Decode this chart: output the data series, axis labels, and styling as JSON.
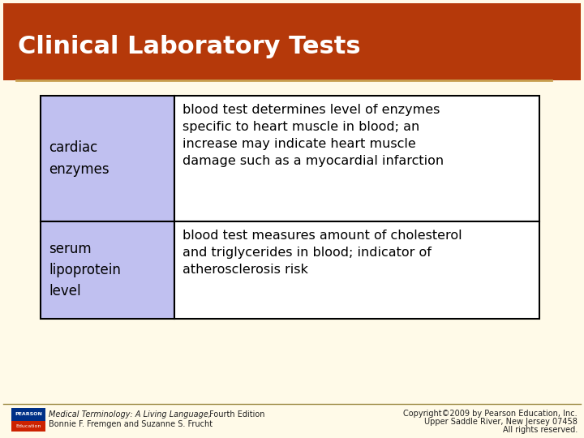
{
  "title": "Clinical Laboratory Tests",
  "title_color": "#ffffff",
  "title_bg_color": "#b5390a",
  "title_underline_color": "#c8a050",
  "bg_color": "#fffae8",
  "slide_border_color": "#9a8840",
  "table_border_color": "#000000",
  "cell1_bg": "#c0c0f0",
  "cell2_bg": "#ffffff",
  "row1_term": "cardiac\nenzymes",
  "row1_def": "blood test determines level of enzymes\nspecific to heart muscle in blood; an\nincrease may indicate heart muscle\ndamage such as a myocardial infarction",
  "row2_term": "serum\nlipoprotein\nlevel",
  "row2_def": "blood test measures amount of cholesterol\nand triglycerides in blood; indicator of\natherosclerosis risk",
  "footer_left_italic": "Medical Terminology: A Living Language,",
  "footer_left_normal": " Fourth Edition",
  "footer_left_line2": "Bonnie F. Fremgen and Suzanne S. Frucht",
  "footer_right_line1": "Copyright©2009 by Pearson Education, Inc.",
  "footer_right_line2": "Upper Saddle River, New Jersey 07458",
  "footer_right_line3": "All rights reserved.",
  "pearson_box_color": "#003087",
  "education_box_color": "#cc2200"
}
